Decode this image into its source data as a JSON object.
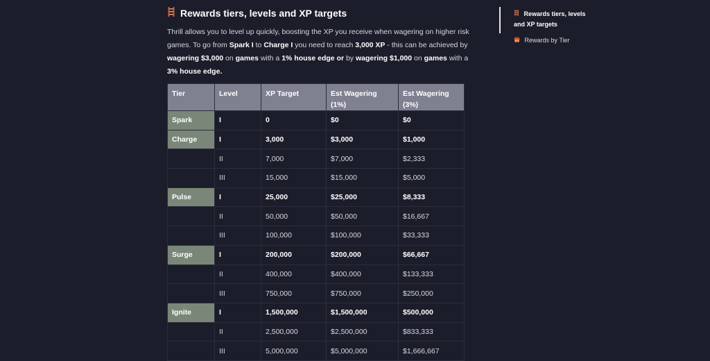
{
  "section": {
    "icon": "ladder-icon",
    "title": "Rewards tiers, levels and XP targets"
  },
  "intro": {
    "t1": "Thrill allows you to level up quickly, boosting the XP you receive when wagering on higher risk games. To go from ",
    "b1": "Spark I",
    "t2": " to ",
    "b2": "Charge I",
    "t3": " you need to reach ",
    "b3": "3,000 XP",
    "t4": " - this can be achieved by ",
    "b4": "wagering $3,000",
    "t5": " on ",
    "b5": "games",
    "t6": " with a ",
    "b6": "1% house edge or",
    "t7": " by ",
    "b7": "wagering $1,000",
    "t8": " on ",
    "b8": "games",
    "t9": " with a ",
    "b9": "3% house edge."
  },
  "table": {
    "headers": [
      "Tier",
      "Level",
      "XP Target",
      "Est Wagering (1%)",
      "Est Wagering (3%)"
    ],
    "rows": [
      {
        "tier": "Spark",
        "level": "I",
        "xp": "0",
        "w1": "$0",
        "w3": "$0"
      },
      {
        "tier": "Charge",
        "level": "I",
        "xp": "3,000",
        "w1": "$3,000",
        "w3": "$1,000"
      },
      {
        "tier": "",
        "level": "II",
        "xp": "7,000",
        "w1": "$7,000",
        "w3": "$2,333"
      },
      {
        "tier": "",
        "level": "III",
        "xp": "15,000",
        "w1": "$15,000",
        "w3": "$5,000"
      },
      {
        "tier": "Pulse",
        "level": "I",
        "xp": "25,000",
        "w1": "$25,000",
        "w3": "$8,333"
      },
      {
        "tier": "",
        "level": "II",
        "xp": "50,000",
        "w1": "$50,000",
        "w3": "$16,667"
      },
      {
        "tier": "",
        "level": "III",
        "xp": "100,000",
        "w1": "$100,000",
        "w3": "$33,333"
      },
      {
        "tier": "Surge",
        "level": "I",
        "xp": "200,000",
        "w1": "$200,000",
        "w3": "$66,667"
      },
      {
        "tier": "",
        "level": "II",
        "xp": "400,000",
        "w1": "$400,000",
        "w3": "$133,333"
      },
      {
        "tier": "",
        "level": "III",
        "xp": "750,000",
        "w1": "$750,000",
        "w3": "$250,000"
      },
      {
        "tier": "Ignite",
        "level": "I",
        "xp": "1,500,000",
        "w1": "$1,500,000",
        "w3": "$500,000"
      },
      {
        "tier": "",
        "level": "II",
        "xp": "2,500,000",
        "w1": "$2,500,000",
        "w3": "$833,333"
      },
      {
        "tier": "",
        "level": "III",
        "xp": "5,000,000",
        "w1": "$5,000,000",
        "w3": "$1,666,667"
      }
    ]
  },
  "toc": {
    "items": [
      {
        "icon": "ladder-icon",
        "label": "Rewards tiers, levels and XP targets",
        "active": true
      },
      {
        "icon": "gift-icon",
        "label": "Rewards by Tier",
        "active": false
      }
    ]
  },
  "colors": {
    "background": "#1c1d2b",
    "header_bg": "#7f8190",
    "tier_bg": "#7a8778",
    "border": "#2c2d3c",
    "ladder": "#c8593f"
  }
}
